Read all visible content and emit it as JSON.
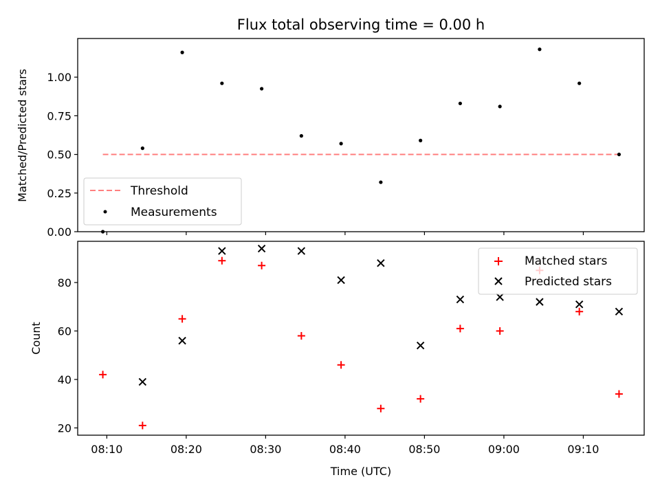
{
  "chart_data": [
    {
      "type": "scatter",
      "title": "Flux total observing time = 0.00 h",
      "xlabel": "",
      "ylabel": "Matched/Predicted stars",
      "ylim": [
        0,
        1.25
      ],
      "yticks": [
        "0.00",
        "0.25",
        "0.50",
        "0.75",
        "1.00"
      ],
      "yticks_values": [
        0,
        0.25,
        0.5,
        0.75,
        1.0
      ],
      "grid": false,
      "legend_position": "lower-left",
      "series": [
        {
          "name": "Threshold",
          "kind": "dashed-line",
          "color": "#ff7f7f",
          "x": [
            "08:09:30",
            "09:14:30"
          ],
          "y": [
            0.5,
            0.5
          ]
        },
        {
          "name": "Measurements",
          "kind": "dot",
          "color": "#000000",
          "x": [
            "08:09:30",
            "08:14:30",
            "08:19:30",
            "08:24:30",
            "08:29:30",
            "08:34:30",
            "08:39:30",
            "08:44:30",
            "08:49:30",
            "08:54:30",
            "08:59:30",
            "09:04:30",
            "09:09:30",
            "09:14:30"
          ],
          "y": [
            0.0,
            0.54,
            1.16,
            0.96,
            0.925,
            0.62,
            0.57,
            0.32,
            0.59,
            0.83,
            0.81,
            1.18,
            0.96,
            0.5
          ]
        }
      ]
    },
    {
      "type": "scatter",
      "title": "",
      "xlabel": "Time (UTC)",
      "ylabel": "Count",
      "ylim": [
        17,
        97
      ],
      "yticks": [
        "20",
        "40",
        "60",
        "80"
      ],
      "yticks_values": [
        20,
        40,
        60,
        80
      ],
      "xticks": [
        "08:10",
        "08:20",
        "08:30",
        "08:40",
        "08:50",
        "09:00",
        "09:10"
      ],
      "xticks_values": [
        "08:10",
        "08:20",
        "08:30",
        "08:40",
        "08:50",
        "09:00",
        "09:10"
      ],
      "xlim": [
        "08:06:20",
        "09:17:40"
      ],
      "grid": false,
      "legend_position": "top-right",
      "series": [
        {
          "name": "Matched stars",
          "kind": "plus",
          "color": "#ff0000",
          "x": [
            "08:09:30",
            "08:14:30",
            "08:19:30",
            "08:24:30",
            "08:29:30",
            "08:34:30",
            "08:39:30",
            "08:44:30",
            "08:49:30",
            "08:54:30",
            "08:59:30",
            "09:04:30",
            "09:09:30",
            "09:14:30"
          ],
          "y": [
            42,
            21,
            65,
            89,
            87,
            58,
            46,
            28,
            32,
            61,
            60,
            85,
            68,
            34
          ]
        },
        {
          "name": "Predicted stars",
          "kind": "cross",
          "color": "#000000",
          "x": [
            "08:14:30",
            "08:19:30",
            "08:24:30",
            "08:29:30",
            "08:34:30",
            "08:39:30",
            "08:44:30",
            "08:49:30",
            "08:54:30",
            "08:59:30",
            "09:04:30",
            "09:09:30",
            "09:14:30"
          ],
          "y": [
            39,
            56,
            93,
            94,
            93,
            81,
            88,
            54,
            73,
            74,
            72,
            71,
            68
          ]
        }
      ]
    }
  ]
}
